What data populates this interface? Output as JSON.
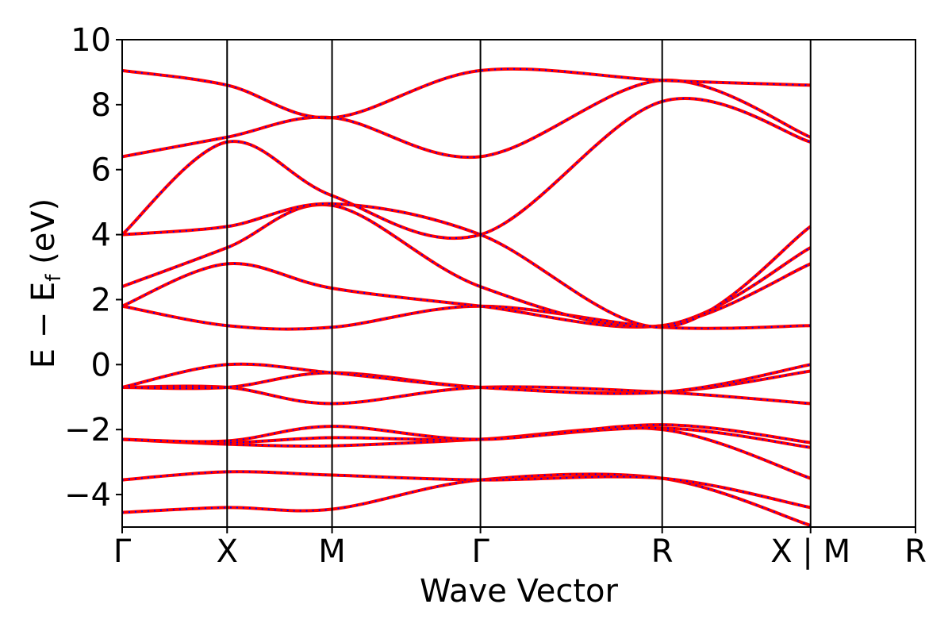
{
  "chart_data": {
    "type": "line",
    "title": "",
    "xlabel": "Wave Vector",
    "ylabel": "E − E_f (eV)",
    "ylabel_main": "E − E",
    "ylabel_sub": "f",
    "ylabel_tail": " (eV)",
    "ylim": [
      -5,
      10
    ],
    "yticks": [
      -4,
      -2,
      0,
      2,
      4,
      6,
      8,
      10
    ],
    "ytick_labels": [
      "−4",
      "−2",
      "0",
      "2",
      "4",
      "6",
      "8",
      "10"
    ],
    "grid": false,
    "kpath": [
      {
        "label": "Γ",
        "x": 0.0
      },
      {
        "label": "X",
        "x": 0.5
      },
      {
        "label": "M",
        "x": 1.0
      },
      {
        "label": "Γ",
        "x": 1.707
      },
      {
        "label": "R",
        "x": 2.573
      },
      {
        "label": "X | M",
        "x": 3.28
      },
      {
        "label": "R",
        "x": 3.78
      }
    ],
    "xlim": [
      0,
      3.78
    ],
    "colors": {
      "series_a": "#ff0000",
      "series_b": "#0000ff",
      "axis": "#000000"
    },
    "series_styles": [
      {
        "color": "#ff0000",
        "style": "solid"
      },
      {
        "color": "#0000ff",
        "style": "dotted"
      }
    ],
    "bands": [
      {
        "x": [
          0,
          0.5,
          1.0,
          1.707,
          2.573,
          3.28
        ],
        "y": [
          -4.55,
          -4.4,
          -4.45,
          -3.55,
          -3.5,
          -4.95
        ]
      },
      {
        "x": [
          0,
          0.5,
          1.0,
          1.707,
          2.573,
          3.28
        ],
        "y": [
          -3.55,
          -3.3,
          -3.4,
          -3.55,
          -3.5,
          -4.4
        ]
      },
      {
        "x": [
          0,
          0.5,
          1.0,
          1.707,
          2.573,
          3.28
        ],
        "y": [
          -2.3,
          -2.45,
          -2.5,
          -2.3,
          -2.0,
          -3.5
        ]
      },
      {
        "x": [
          0,
          0.5,
          1.0,
          1.707,
          2.573,
          3.28
        ],
        "y": [
          -2.3,
          -2.4,
          -2.25,
          -2.3,
          -1.95,
          -2.55
        ]
      },
      {
        "x": [
          0,
          0.5,
          1.0,
          1.707,
          2.573,
          3.28
        ],
        "y": [
          -2.3,
          -2.35,
          -1.9,
          -2.3,
          -1.85,
          -2.4
        ]
      },
      {
        "x": [
          0,
          0.5,
          1.0,
          1.707,
          2.573,
          3.28
        ],
        "y": [
          -0.7,
          -0.7,
          -1.2,
          -0.7,
          -0.85,
          -1.2
        ]
      },
      {
        "x": [
          0,
          0.5,
          1.0,
          1.707,
          2.573,
          3.28
        ],
        "y": [
          -0.7,
          -0.7,
          -0.25,
          -0.7,
          -0.85,
          -0.2
        ]
      },
      {
        "x": [
          0,
          0.5,
          1.0,
          1.707,
          2.573,
          3.28
        ],
        "y": [
          -0.7,
          0.0,
          -0.25,
          -0.7,
          -0.85,
          0.0
        ]
      },
      {
        "x": [
          0,
          0.5,
          1.0,
          1.707,
          2.573,
          3.28
        ],
        "y": [
          1.8,
          1.2,
          1.15,
          1.8,
          1.15,
          1.2
        ]
      },
      {
        "x": [
          0,
          0.5,
          1.0,
          1.707,
          2.573,
          3.28
        ],
        "y": [
          1.8,
          3.1,
          2.35,
          1.8,
          1.2,
          3.1
        ]
      },
      {
        "x": [
          0,
          0.5,
          1.0,
          1.707,
          2.573,
          3.28
        ],
        "y": [
          2.4,
          3.6,
          4.9,
          2.4,
          1.2,
          3.6
        ]
      },
      {
        "x": [
          0,
          0.5,
          1.0,
          1.707,
          2.573,
          3.28
        ],
        "y": [
          4.0,
          4.25,
          4.95,
          4.0,
          1.15,
          4.25
        ]
      },
      {
        "x": [
          0,
          0.5,
          1.0,
          1.707,
          2.573,
          3.28
        ],
        "y": [
          4.0,
          6.85,
          5.2,
          4.0,
          8.1,
          6.85
        ]
      },
      {
        "x": [
          0,
          0.5,
          1.0,
          1.707,
          2.573,
          3.28
        ],
        "y": [
          6.4,
          7.0,
          7.6,
          6.4,
          8.75,
          7.0
        ]
      },
      {
        "x": [
          0,
          0.5,
          1.0,
          1.707,
          2.573,
          3.28
        ],
        "y": [
          9.05,
          8.6,
          7.6,
          9.05,
          8.75,
          8.6
        ]
      }
    ]
  }
}
